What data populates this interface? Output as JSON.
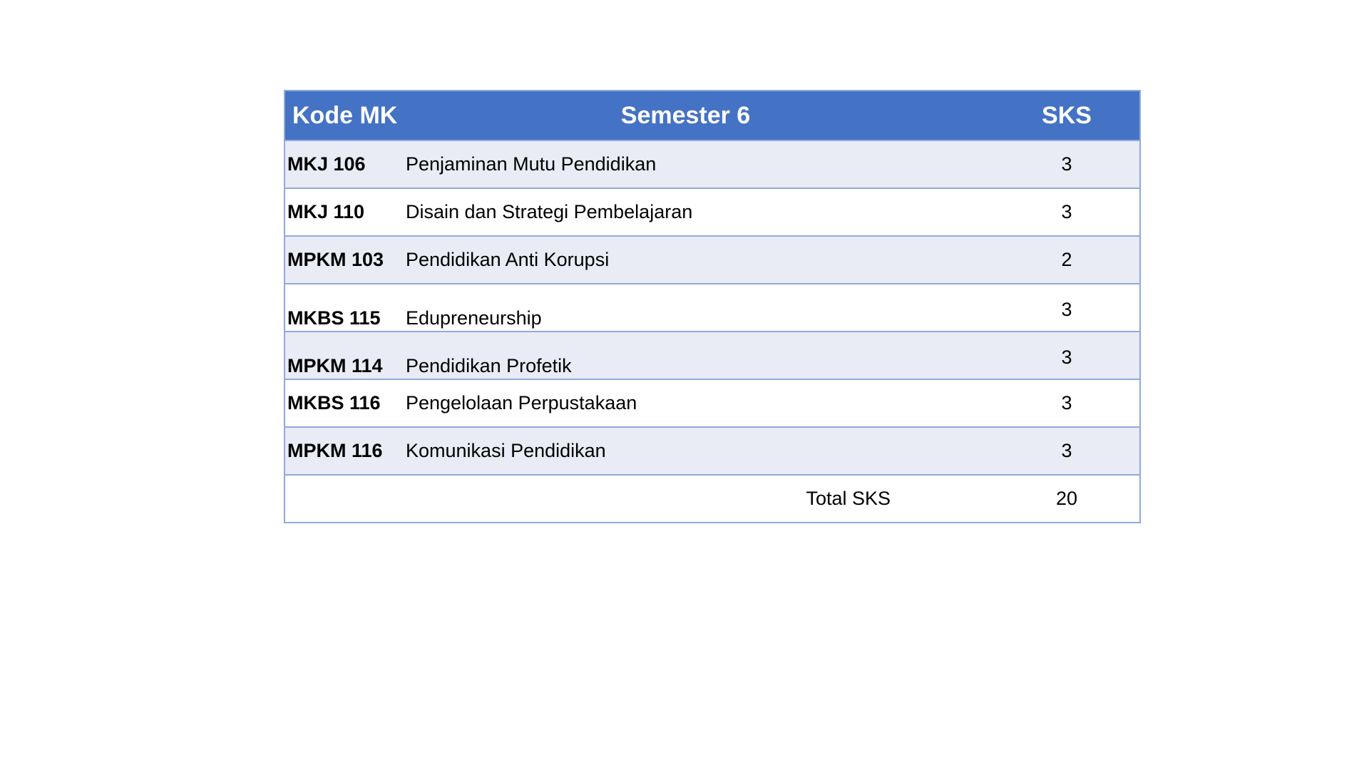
{
  "table": {
    "headers": {
      "code": "Kode MK",
      "semester": "Semester 6",
      "sks": "SKS"
    },
    "rows": [
      {
        "code": "MKJ 106",
        "name": "Penjaminan Mutu Pendidikan",
        "sks": "3"
      },
      {
        "code": "MKJ 110",
        "name": "Disain dan Strategi Pembelajaran",
        "sks": "3"
      },
      {
        "code": "MPKM 103",
        "name": "Pendidikan Anti Korupsi",
        "sks": "2"
      },
      {
        "code": "MKBS 115",
        "name": "Edupreneurship",
        "sks": "3"
      },
      {
        "code": "MPKM 114",
        "name": "Pendidikan Profetik",
        "sks": "3"
      },
      {
        "code": "MKBS 116",
        "name": "Pengelolaan Perpustakaan",
        "sks": "3"
      },
      {
        "code": "MPKM 116",
        "name": "Komunikasi Pendidikan",
        "sks": "3"
      }
    ],
    "total": {
      "label": "Total SKS",
      "value": "20"
    }
  },
  "colors": {
    "header_bg": "#4472c4",
    "row_shaded": "#e9ebf5",
    "border": "#8eaadb"
  }
}
